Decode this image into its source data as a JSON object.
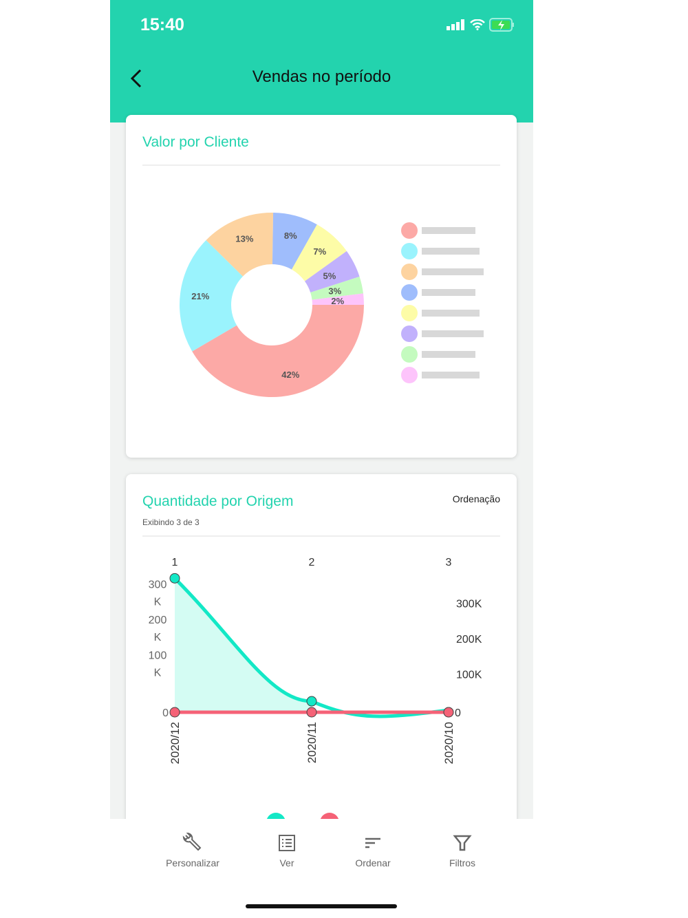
{
  "status_bar": {
    "time": "15:40"
  },
  "header": {
    "title": "Vendas no período"
  },
  "pie_card": {
    "title": "Valor por Cliente"
  },
  "line_card": {
    "title": "Quantidade por Origem",
    "subtitle": "Exibindo 3 de 3",
    "sort_label": "Ordenação"
  },
  "nav": [
    {
      "label": "Personalizar",
      "icon": "wrench-icon"
    },
    {
      "label": "Ver",
      "icon": "list-icon"
    },
    {
      "label": "Ordenar",
      "icon": "sort-icon"
    },
    {
      "label": "Filtros",
      "icon": "filter-icon"
    }
  ],
  "chart_data": [
    {
      "type": "pie",
      "title": "Valor por Cliente",
      "donut": true,
      "slices": [
        {
          "label": "42%",
          "value": 42,
          "color": "#fca9a6"
        },
        {
          "label": "21%",
          "value": 21,
          "color": "#9af3fd"
        },
        {
          "label": "13%",
          "value": 13,
          "color": "#fdd3a0"
        },
        {
          "label": "8%",
          "value": 8,
          "color": "#9fbdfc"
        },
        {
          "label": "7%",
          "value": 7,
          "color": "#fdfca7"
        },
        {
          "label": "5%",
          "value": 5,
          "color": "#c1b1fc"
        },
        {
          "label": "3%",
          "value": 3,
          "color": "#c4fbbf"
        },
        {
          "label": "2%",
          "value": 2,
          "color": "#fdc4fb"
        }
      ]
    },
    {
      "type": "area",
      "title": "Quantidade por Origem",
      "categories": [
        "2020/12",
        "2020/11",
        "2020/10"
      ],
      "top_ticks": [
        "1",
        "2",
        "3"
      ],
      "left_ticks": [
        "0",
        "100 K",
        "200 K",
        "300 K"
      ],
      "right_ticks": [
        "0",
        "100K",
        "200K",
        "300K"
      ],
      "ylim": [
        0,
        380000
      ],
      "series": [
        {
          "name": "",
          "color": "#13e8c6",
          "values": [
            378000,
            31000,
            0
          ]
        },
        {
          "name": "",
          "color": "#f56277",
          "values": [
            0,
            0,
            0
          ]
        }
      ]
    }
  ]
}
